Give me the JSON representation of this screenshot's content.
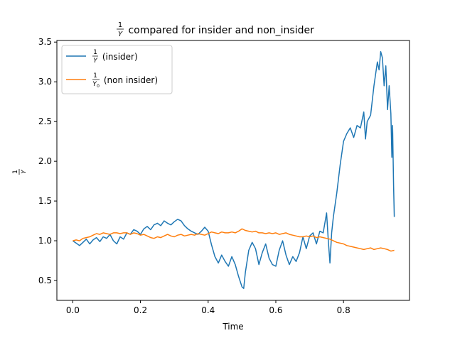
{
  "chart_data": {
    "type": "line",
    "title": {
      "num": "1",
      "den": "Y",
      "text": " compared for insider and non_insider"
    },
    "xlabel": "Time",
    "ylabel": {
      "num": "1",
      "den": "Y"
    },
    "xlim": [
      -0.047,
      0.995
    ],
    "ylim": [
      0.25,
      3.52
    ],
    "xticks": [
      0.0,
      0.2,
      0.4,
      0.6,
      0.8
    ],
    "xtick_labels": [
      "0.0",
      "0.2",
      "0.4",
      "0.6",
      "0.8"
    ],
    "yticks": [
      0.5,
      1.0,
      1.5,
      2.0,
      2.5,
      3.0,
      3.5
    ],
    "ytick_labels": [
      "0.5",
      "1.0",
      "1.5",
      "2.0",
      "2.5",
      "3.0",
      "3.5"
    ],
    "legend_position": "top-left",
    "series": [
      {
        "name": {
          "num": "1",
          "den": "Y",
          "sub": "",
          "text": " (insider)"
        },
        "color": "#1f77b4",
        "x": [
          0.0,
          0.01,
          0.02,
          0.03,
          0.04,
          0.05,
          0.06,
          0.07,
          0.08,
          0.09,
          0.1,
          0.11,
          0.12,
          0.13,
          0.14,
          0.15,
          0.16,
          0.17,
          0.18,
          0.19,
          0.2,
          0.21,
          0.22,
          0.23,
          0.24,
          0.25,
          0.26,
          0.27,
          0.28,
          0.29,
          0.3,
          0.31,
          0.32,
          0.33,
          0.34,
          0.35,
          0.36,
          0.37,
          0.38,
          0.39,
          0.4,
          0.41,
          0.42,
          0.43,
          0.44,
          0.45,
          0.46,
          0.47,
          0.48,
          0.49,
          0.5,
          0.505,
          0.51,
          0.52,
          0.53,
          0.54,
          0.55,
          0.56,
          0.57,
          0.58,
          0.59,
          0.6,
          0.61,
          0.62,
          0.63,
          0.64,
          0.65,
          0.66,
          0.67,
          0.68,
          0.69,
          0.7,
          0.71,
          0.72,
          0.73,
          0.74,
          0.75,
          0.755,
          0.76,
          0.765,
          0.77,
          0.78,
          0.79,
          0.8,
          0.81,
          0.82,
          0.83,
          0.84,
          0.85,
          0.86,
          0.865,
          0.87,
          0.88,
          0.89,
          0.9,
          0.905,
          0.91,
          0.915,
          0.92,
          0.925,
          0.93,
          0.935,
          0.94,
          0.943,
          0.945,
          0.948,
          0.95
        ],
        "values": [
          1.0,
          0.97,
          0.94,
          0.98,
          1.02,
          0.96,
          1.01,
          1.04,
          0.99,
          1.05,
          1.03,
          1.08,
          1.0,
          0.96,
          1.05,
          1.02,
          1.1,
          1.08,
          1.14,
          1.12,
          1.08,
          1.15,
          1.18,
          1.14,
          1.2,
          1.22,
          1.19,
          1.25,
          1.22,
          1.2,
          1.24,
          1.27,
          1.25,
          1.19,
          1.15,
          1.12,
          1.1,
          1.08,
          1.12,
          1.17,
          1.12,
          0.95,
          0.8,
          0.72,
          0.82,
          0.74,
          0.68,
          0.8,
          0.7,
          0.55,
          0.42,
          0.4,
          0.6,
          0.88,
          0.98,
          0.9,
          0.7,
          0.85,
          0.96,
          0.78,
          0.7,
          0.68,
          0.88,
          1.0,
          0.82,
          0.7,
          0.8,
          0.74,
          0.85,
          1.05,
          0.9,
          1.06,
          1.1,
          0.96,
          1.12,
          1.1,
          1.35,
          1.0,
          0.72,
          1.1,
          1.3,
          1.6,
          1.95,
          2.25,
          2.35,
          2.42,
          2.3,
          2.45,
          2.42,
          2.62,
          2.28,
          2.5,
          2.58,
          2.95,
          3.25,
          3.15,
          3.38,
          3.3,
          2.95,
          3.2,
          2.65,
          2.95,
          2.6,
          2.05,
          2.45,
          1.7,
          1.3
        ]
      },
      {
        "name": {
          "num": "1",
          "den": "Y",
          "sub": "0",
          "text": " (non insider)"
        },
        "color": "#ff7f0e",
        "x": [
          0.0,
          0.01,
          0.02,
          0.03,
          0.04,
          0.05,
          0.06,
          0.07,
          0.08,
          0.09,
          0.1,
          0.11,
          0.12,
          0.13,
          0.14,
          0.15,
          0.16,
          0.17,
          0.18,
          0.19,
          0.2,
          0.21,
          0.22,
          0.23,
          0.24,
          0.25,
          0.26,
          0.27,
          0.28,
          0.29,
          0.3,
          0.31,
          0.32,
          0.33,
          0.34,
          0.35,
          0.36,
          0.37,
          0.38,
          0.39,
          0.4,
          0.41,
          0.42,
          0.43,
          0.44,
          0.45,
          0.46,
          0.47,
          0.48,
          0.49,
          0.5,
          0.51,
          0.52,
          0.53,
          0.54,
          0.55,
          0.56,
          0.57,
          0.58,
          0.59,
          0.6,
          0.61,
          0.62,
          0.63,
          0.64,
          0.65,
          0.66,
          0.67,
          0.68,
          0.69,
          0.7,
          0.71,
          0.72,
          0.73,
          0.74,
          0.75,
          0.76,
          0.77,
          0.78,
          0.79,
          0.8,
          0.81,
          0.82,
          0.83,
          0.84,
          0.85,
          0.86,
          0.87,
          0.88,
          0.89,
          0.9,
          0.91,
          0.92,
          0.93,
          0.94,
          0.95
        ],
        "values": [
          1.0,
          1.01,
          1.0,
          1.03,
          1.04,
          1.05,
          1.07,
          1.09,
          1.08,
          1.1,
          1.09,
          1.08,
          1.1,
          1.1,
          1.09,
          1.1,
          1.1,
          1.08,
          1.1,
          1.09,
          1.07,
          1.08,
          1.06,
          1.04,
          1.03,
          1.05,
          1.04,
          1.06,
          1.08,
          1.06,
          1.05,
          1.07,
          1.08,
          1.06,
          1.07,
          1.08,
          1.07,
          1.09,
          1.08,
          1.07,
          1.09,
          1.11,
          1.1,
          1.09,
          1.11,
          1.1,
          1.1,
          1.11,
          1.1,
          1.12,
          1.15,
          1.13,
          1.12,
          1.11,
          1.12,
          1.1,
          1.1,
          1.09,
          1.1,
          1.09,
          1.1,
          1.08,
          1.09,
          1.1,
          1.08,
          1.07,
          1.06,
          1.05,
          1.05,
          1.06,
          1.05,
          1.06,
          1.04,
          1.05,
          1.04,
          1.03,
          1.02,
          1.0,
          0.98,
          0.97,
          0.96,
          0.94,
          0.93,
          0.92,
          0.91,
          0.9,
          0.89,
          0.9,
          0.91,
          0.89,
          0.9,
          0.91,
          0.9,
          0.89,
          0.87,
          0.88
        ]
      }
    ]
  }
}
